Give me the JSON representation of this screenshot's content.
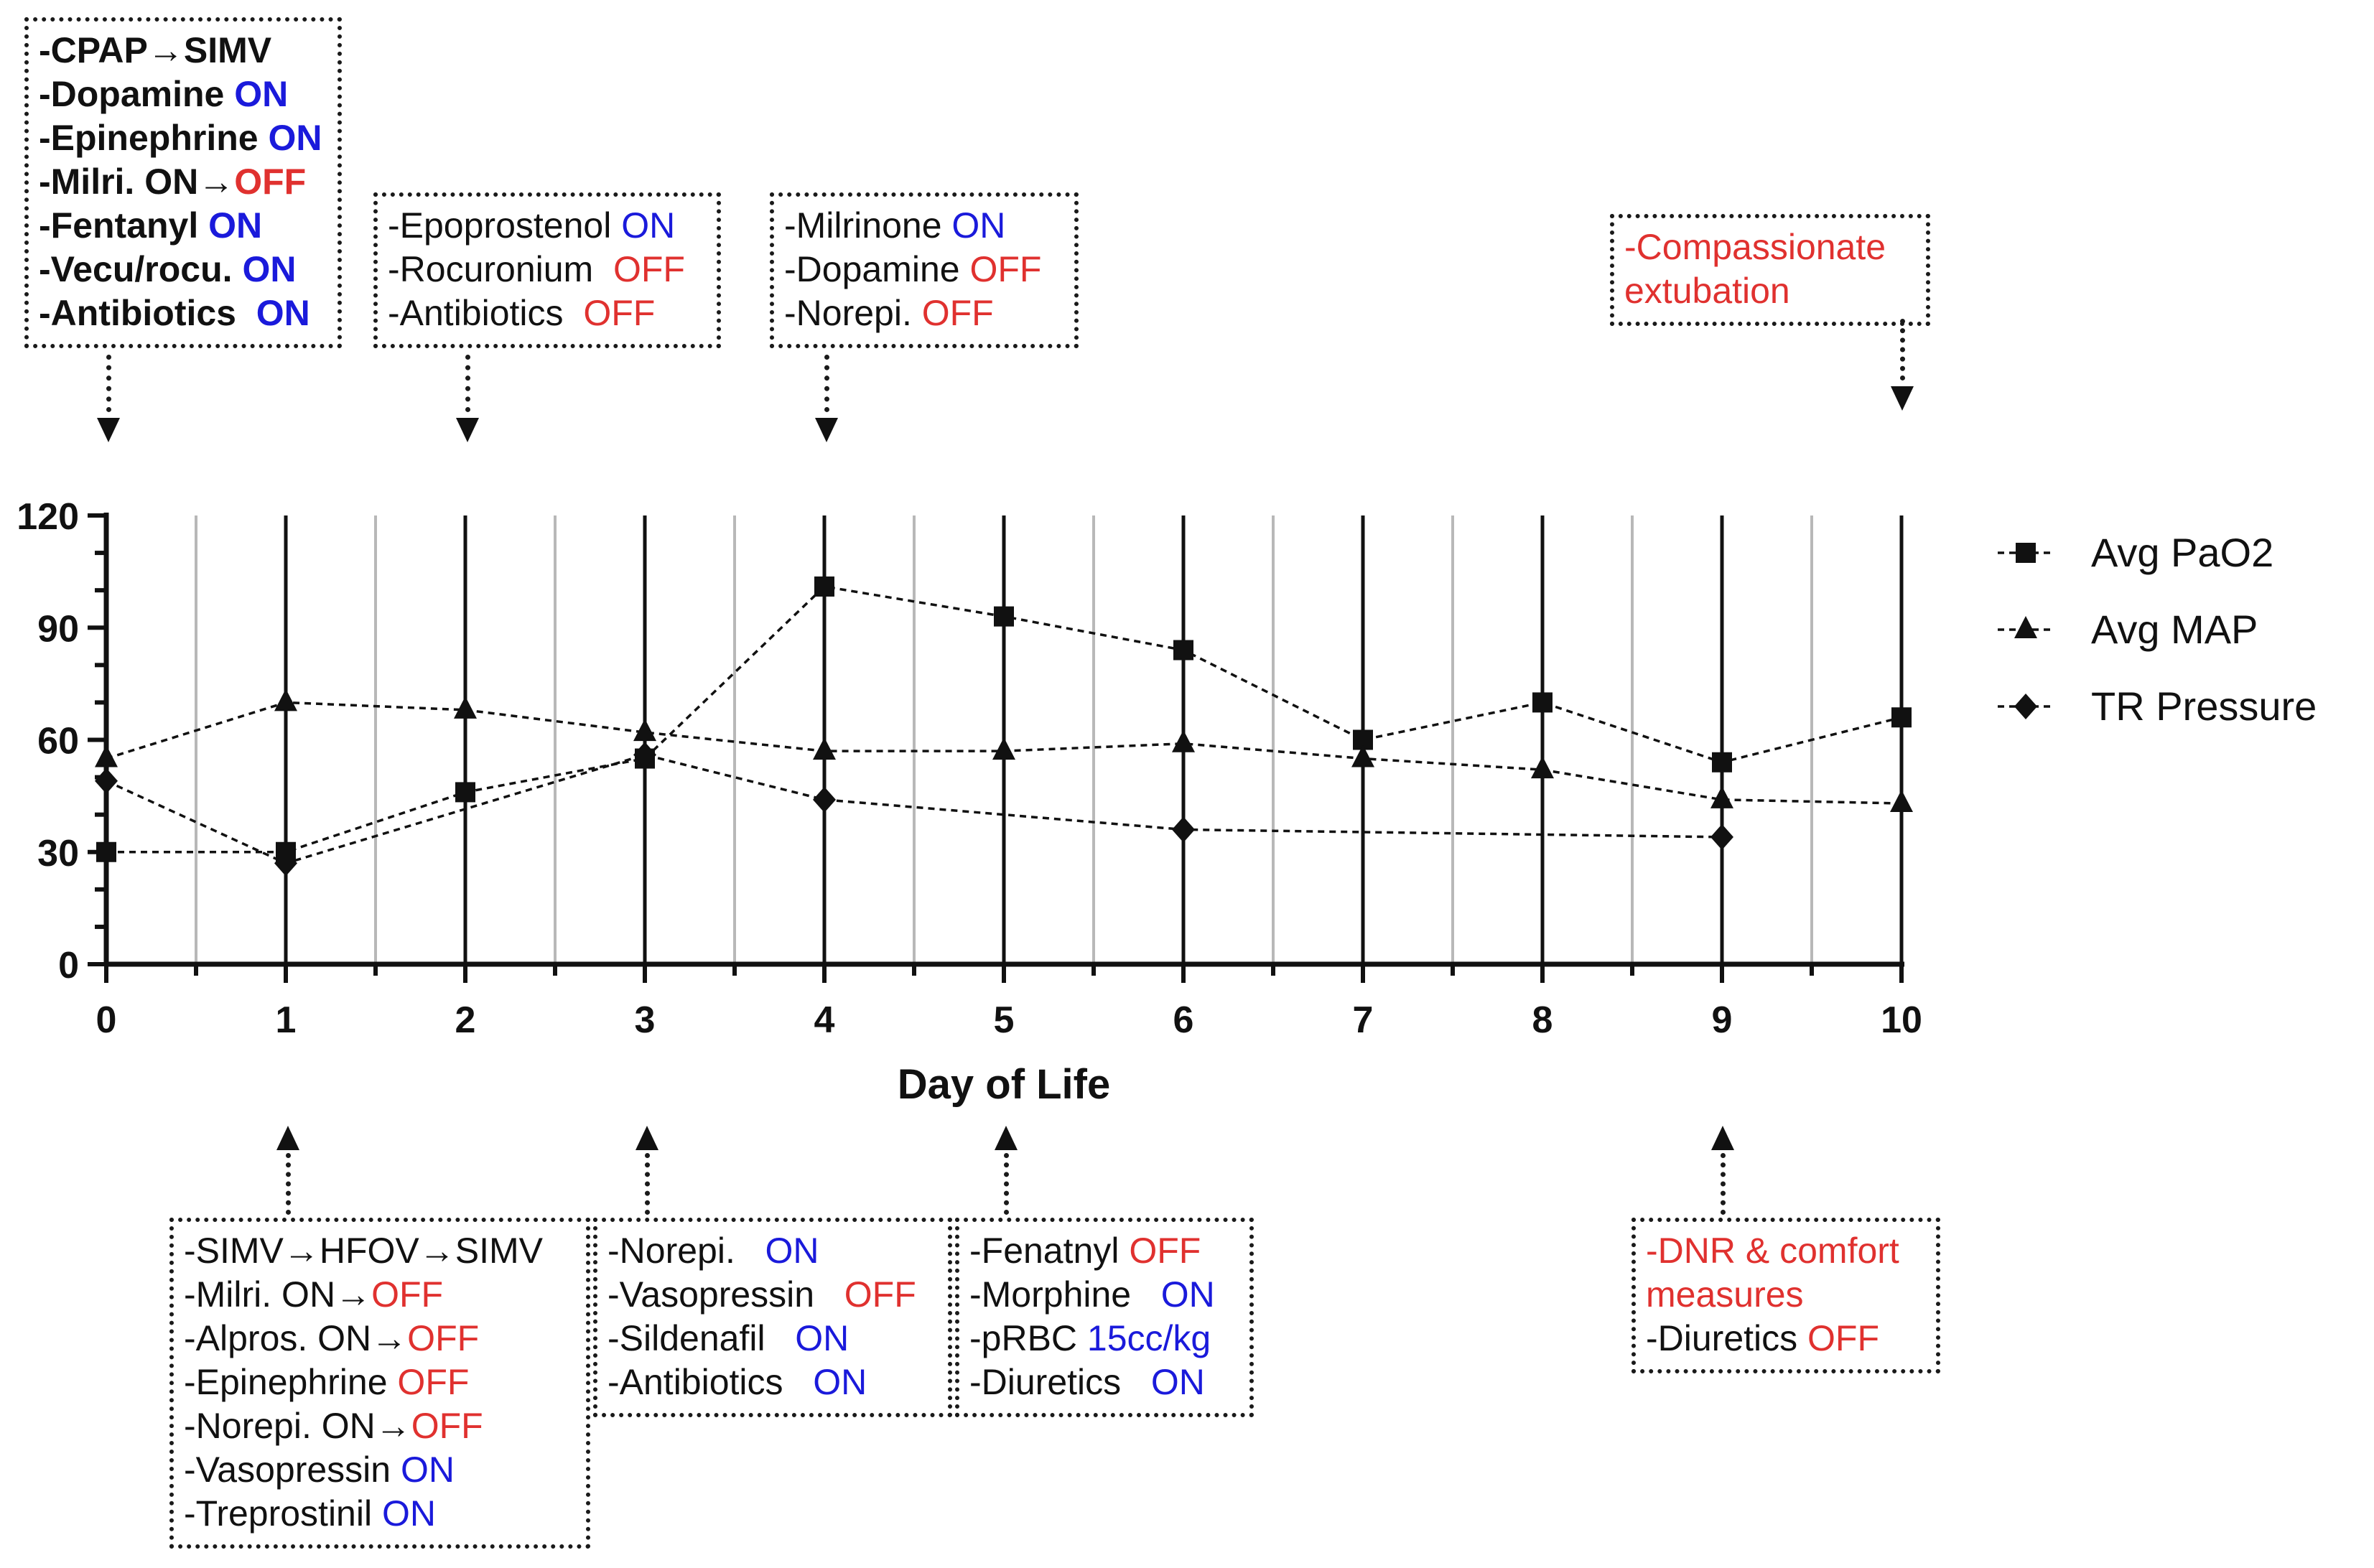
{
  "chart_data": {
    "type": "line",
    "title": "",
    "xlabel": "Day of Life",
    "ylabel": "",
    "xlim": [
      0,
      10
    ],
    "ylim": [
      0,
      120
    ],
    "x_ticks": [
      "0",
      "1",
      "2",
      "3",
      "4",
      "5",
      "6",
      "7",
      "8",
      "9",
      "10"
    ],
    "y_ticks": [
      "0",
      "30",
      "60",
      "90",
      "120"
    ],
    "grid": "vertical lines at every half day",
    "legend_position": "right",
    "series": [
      {
        "name": "Avg PaO2",
        "marker": "square",
        "points": [
          [
            0,
            30
          ],
          [
            1,
            30
          ],
          [
            2,
            46
          ],
          [
            3,
            55
          ],
          [
            4,
            101
          ],
          [
            5,
            93
          ],
          [
            6,
            84
          ],
          [
            7,
            60
          ],
          [
            8,
            70
          ],
          [
            9,
            54
          ],
          [
            10,
            66
          ]
        ]
      },
      {
        "name": "Avg MAP",
        "marker": "triangle",
        "points": [
          [
            0,
            55
          ],
          [
            1,
            70
          ],
          [
            2,
            68
          ],
          [
            3,
            62
          ],
          [
            4,
            57
          ],
          [
            5,
            57
          ],
          [
            6,
            59
          ],
          [
            7,
            55
          ],
          [
            8,
            52
          ],
          [
            9,
            44
          ],
          [
            10,
            43
          ]
        ]
      },
      {
        "name": "TR Pressure",
        "marker": "diamond",
        "points": [
          [
            0,
            49
          ],
          [
            1,
            27
          ],
          [
            3,
            56
          ],
          [
            4,
            44
          ],
          [
            6,
            36
          ],
          [
            9,
            34
          ]
        ]
      }
    ]
  },
  "annotations": {
    "top": [
      {
        "id": "day0",
        "lines": [
          [
            {
              "t": "-CPAP→SIMV",
              "c": "k"
            }
          ],
          [
            {
              "t": "-Dopamine ",
              "c": "k"
            },
            {
              "t": "ON",
              "c": "on"
            }
          ],
          [
            {
              "t": "-Epinephrine ",
              "c": "k"
            },
            {
              "t": "ON",
              "c": "on"
            }
          ],
          [
            {
              "t": "-Milri. ON→",
              "c": "k"
            },
            {
              "t": "OFF",
              "c": "off"
            }
          ],
          [
            {
              "t": "-Fentanyl ",
              "c": "k"
            },
            {
              "t": "ON",
              "c": "on"
            }
          ],
          [
            {
              "t": "-Vecu/rocu. ",
              "c": "k"
            },
            {
              "t": "ON",
              "c": "on"
            }
          ],
          [
            {
              "t": "-Antibiotics  ",
              "c": "k"
            },
            {
              "t": "ON",
              "c": "on"
            }
          ]
        ]
      },
      {
        "id": "day2",
        "lines": [
          [
            {
              "t": "-Epoprostenol ",
              "c": "k"
            },
            {
              "t": "ON",
              "c": "on"
            }
          ],
          [
            {
              "t": "-Rocuronium  ",
              "c": "k"
            },
            {
              "t": "OFF",
              "c": "off"
            }
          ],
          [
            {
              "t": "-Antibiotics  ",
              "c": "k"
            },
            {
              "t": "OFF",
              "c": "off"
            }
          ]
        ]
      },
      {
        "id": "day4",
        "lines": [
          [
            {
              "t": "-Milrinone ",
              "c": "k"
            },
            {
              "t": "ON",
              "c": "on"
            }
          ],
          [
            {
              "t": "-Dopamine ",
              "c": "k"
            },
            {
              "t": "OFF",
              "c": "off"
            }
          ],
          [
            {
              "t": "-Norepi. ",
              "c": "k"
            },
            {
              "t": "OFF",
              "c": "off"
            }
          ]
        ]
      },
      {
        "id": "day10",
        "lines": [
          [
            {
              "t": "-Compassionate",
              "c": "off"
            }
          ],
          [
            {
              "t": "extubation",
              "c": "off"
            }
          ]
        ]
      }
    ],
    "bottom": [
      {
        "id": "day1",
        "lines": [
          [
            {
              "t": "-SIMV→HFOV→SIMV",
              "c": "k"
            }
          ],
          [
            {
              "t": "-Milri. ON→",
              "c": "k"
            },
            {
              "t": "OFF",
              "c": "off"
            }
          ],
          [
            {
              "t": "-Alpros. ON→",
              "c": "k"
            },
            {
              "t": "OFF",
              "c": "off"
            }
          ],
          [
            {
              "t": "-Epinephrine ",
              "c": "k"
            },
            {
              "t": "OFF",
              "c": "off"
            }
          ],
          [
            {
              "t": "-Norepi. ON→",
              "c": "k"
            },
            {
              "t": "OFF",
              "c": "off"
            }
          ],
          [
            {
              "t": "-Vasopressin ",
              "c": "k"
            },
            {
              "t": "ON",
              "c": "on"
            }
          ],
          [
            {
              "t": "-Treprostinil ",
              "c": "k"
            },
            {
              "t": "ON",
              "c": "on"
            }
          ]
        ]
      },
      {
        "id": "day3",
        "lines": [
          [
            {
              "t": "-Norepi.   ",
              "c": "k"
            },
            {
              "t": "ON",
              "c": "on"
            }
          ],
          [
            {
              "t": "-Vasopressin   ",
              "c": "k"
            },
            {
              "t": "OFF",
              "c": "off"
            }
          ],
          [
            {
              "t": "-Sildenafil   ",
              "c": "k"
            },
            {
              "t": "ON",
              "c": "on"
            }
          ],
          [
            {
              "t": "-Antibiotics   ",
              "c": "k"
            },
            {
              "t": "ON",
              "c": "on"
            }
          ]
        ]
      },
      {
        "id": "day5",
        "lines": [
          [
            {
              "t": "-Fenatnyl ",
              "c": "k"
            },
            {
              "t": "OFF",
              "c": "off"
            }
          ],
          [
            {
              "t": "-Morphine   ",
              "c": "k"
            },
            {
              "t": "ON",
              "c": "on"
            }
          ],
          [
            {
              "t": "-pRBC ",
              "c": "k"
            },
            {
              "t": "15cc/kg",
              "c": "on"
            }
          ],
          [
            {
              "t": "-Diuretics   ",
              "c": "k"
            },
            {
              "t": "ON",
              "c": "on"
            }
          ]
        ]
      },
      {
        "id": "day9",
        "lines": [
          [
            {
              "t": "-DNR & comfort",
              "c": "off"
            }
          ],
          [
            {
              "t": "measures",
              "c": "off"
            }
          ],
          [
            {
              "t": "-Diuretics ",
              "c": "k"
            },
            {
              "t": "OFF",
              "c": "off"
            }
          ]
        ]
      }
    ]
  },
  "colors": {
    "on": "#1a1adb",
    "off": "#e0312f",
    "ink": "#111111"
  }
}
